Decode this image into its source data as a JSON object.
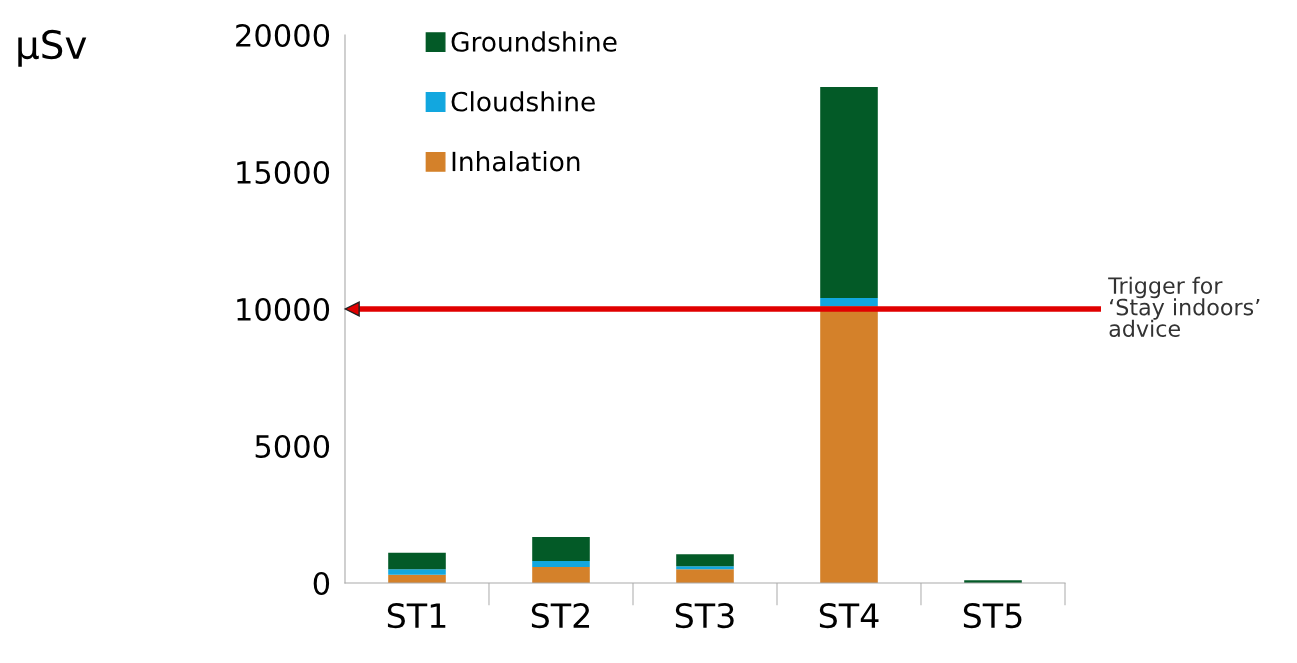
{
  "chart_data": {
    "type": "bar",
    "stacked": true,
    "ylabel": "μSv",
    "categories": [
      "ST1",
      "ST2",
      "ST3",
      "ST4",
      "ST5"
    ],
    "series": [
      {
        "name": "Inhalation",
        "color": "#d4812a",
        "values": [
          300,
          580,
          500,
          10100,
          null
        ]
      },
      {
        "name": "Cloudshine",
        "color": "#12a7df",
        "values": [
          200,
          220,
          110,
          300,
          null
        ]
      },
      {
        "name": "Groundshine",
        "color": "#035a27",
        "values": [
          600,
          880,
          440,
          7700,
          100
        ]
      }
    ],
    "ylim": [
      0,
      20000
    ],
    "yticks": [
      0,
      5000,
      10000,
      15000,
      20000
    ],
    "ref_lines": [
      {
        "axis": "y",
        "value": 10000,
        "label": "Trigger for\n‘Stay indoors’\nadvice",
        "color": "#e00000"
      }
    ],
    "grid": false,
    "legend": "top left"
  }
}
